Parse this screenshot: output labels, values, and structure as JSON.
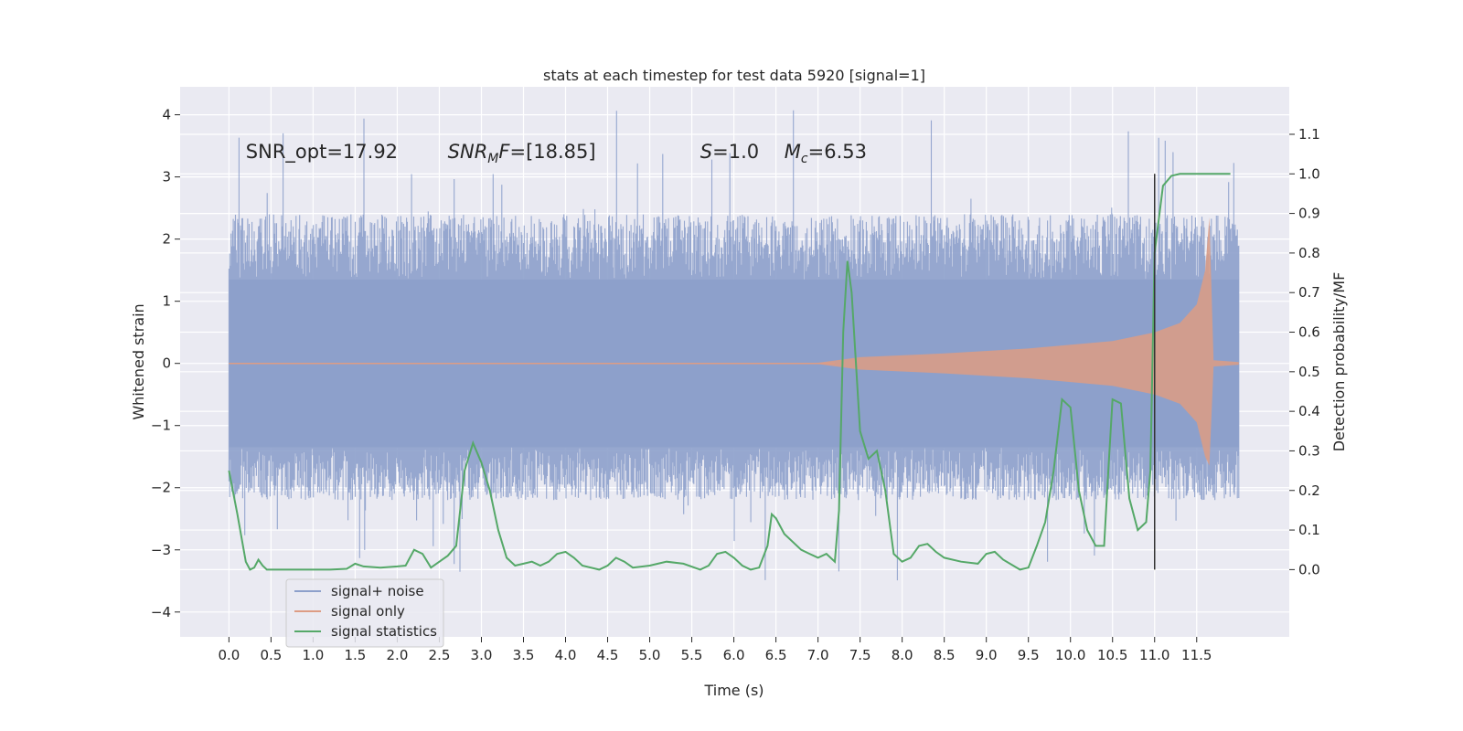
{
  "chart_data": {
    "type": "line",
    "title": "stats at each timestep for test data 5920 [signal=1]",
    "xlabel": "Time (s)",
    "ylabel": "Whitened strain",
    "y2label": "Detection probability/MF",
    "xlim": [
      -0.58,
      12.6
    ],
    "ylim": [
      -4.4,
      4.45
    ],
    "y2lim": [
      -0.17,
      1.22
    ],
    "xticks": [
      0.0,
      0.5,
      1.0,
      1.5,
      2.0,
      2.5,
      3.0,
      3.5,
      4.0,
      4.5,
      5.0,
      5.5,
      6.0,
      6.5,
      7.0,
      7.5,
      8.0,
      8.5,
      9.0,
      9.5,
      10.0,
      10.5,
      11.0,
      11.5
    ],
    "xtick_labels": [
      "0.0",
      "0.5",
      "1.0",
      "1.5",
      "2.0",
      "2.5",
      "3.0",
      "3.5",
      "4.0",
      "4.5",
      "5.0",
      "5.5",
      "6.0",
      "6.5",
      "7.0",
      "7.5",
      "8.0",
      "8.5",
      "9.0",
      "9.5",
      "10.0",
      "10.5",
      "11.0",
      "11.5"
    ],
    "yticks": [
      -4,
      -3,
      -2,
      -1,
      0,
      1,
      2,
      3,
      4
    ],
    "ytick_labels": [
      "−4",
      "−3",
      "−2",
      "−1",
      "0",
      "1",
      "2",
      "3",
      "4"
    ],
    "y2ticks": [
      0.0,
      0.1,
      0.2,
      0.3,
      0.4,
      0.5,
      0.6,
      0.7,
      0.8,
      0.9,
      1.0,
      1.1
    ],
    "y2tick_labels": [
      "0.0",
      "0.1",
      "0.2",
      "0.3",
      "0.4",
      "0.5",
      "0.6",
      "0.7",
      "0.8",
      "0.9",
      "1.0",
      "1.1"
    ],
    "grid": true,
    "legend_position": "lower-left",
    "annotations": [
      {
        "text": "SNR_opt=17.92",
        "x": 0.2,
        "y": 3.3
      },
      {
        "text": "SNR_MF=[18.85]",
        "x": 2.6,
        "y": 3.3
      },
      {
        "text": "S=1.0",
        "x": 5.6,
        "y": 3.3
      },
      {
        "text": "M_c=6.53",
        "x": 6.6,
        "y": 3.3
      }
    ],
    "vline": {
      "x": 11.0,
      "y2_range": [
        0.0,
        1.0
      ],
      "color": "#333333"
    },
    "series": [
      {
        "name": "signal+ noise",
        "color": "#8da0cb",
        "style": "noise-band",
        "x_range": [
          0.0,
          12.0
        ],
        "envelope": {
          "core": 1.35,
          "typical_max": 2.4,
          "typical_min": -2.2,
          "peak_max": 4.1,
          "peak_min": -3.85
        }
      },
      {
        "name": "signal only",
        "color": "#dd9c84",
        "style": "chirp",
        "x_range": [
          0.0,
          12.0
        ],
        "envelope_points": [
          [
            0.0,
            0.0
          ],
          [
            7.0,
            0.01
          ],
          [
            7.5,
            0.1
          ],
          [
            8.5,
            0.16
          ],
          [
            9.5,
            0.24
          ],
          [
            10.5,
            0.36
          ],
          [
            11.0,
            0.5
          ],
          [
            11.3,
            0.65
          ],
          [
            11.5,
            0.95
          ],
          [
            11.6,
            1.5
          ],
          [
            11.65,
            2.35
          ],
          [
            11.7,
            0.05
          ],
          [
            12.0,
            0.02
          ]
        ]
      },
      {
        "name": "signal statistics",
        "color": "#55a868",
        "style": "line",
        "axis": "right",
        "points": [
          [
            0.0,
            0.25
          ],
          [
            0.1,
            0.14
          ],
          [
            0.15,
            0.08
          ],
          [
            0.2,
            0.02
          ],
          [
            0.25,
            0.0
          ],
          [
            0.3,
            0.005
          ],
          [
            0.35,
            0.025
          ],
          [
            0.4,
            0.01
          ],
          [
            0.45,
            0.0
          ],
          [
            0.6,
            0.0
          ],
          [
            0.8,
            0.0
          ],
          [
            1.0,
            0.0
          ],
          [
            1.2,
            0.0
          ],
          [
            1.4,
            0.002
          ],
          [
            1.5,
            0.015
          ],
          [
            1.6,
            0.008
          ],
          [
            1.8,
            0.005
          ],
          [
            2.0,
            0.008
          ],
          [
            2.1,
            0.01
          ],
          [
            2.2,
            0.05
          ],
          [
            2.3,
            0.04
          ],
          [
            2.4,
            0.005
          ],
          [
            2.5,
            0.02
          ],
          [
            2.6,
            0.035
          ],
          [
            2.7,
            0.06
          ],
          [
            2.8,
            0.25
          ],
          [
            2.9,
            0.32
          ],
          [
            3.0,
            0.27
          ],
          [
            3.1,
            0.2
          ],
          [
            3.2,
            0.1
          ],
          [
            3.3,
            0.03
          ],
          [
            3.4,
            0.01
          ],
          [
            3.5,
            0.015
          ],
          [
            3.6,
            0.02
          ],
          [
            3.7,
            0.01
          ],
          [
            3.8,
            0.02
          ],
          [
            3.9,
            0.04
          ],
          [
            4.0,
            0.045
          ],
          [
            4.1,
            0.03
          ],
          [
            4.2,
            0.01
          ],
          [
            4.4,
            0.0
          ],
          [
            4.5,
            0.01
          ],
          [
            4.6,
            0.03
          ],
          [
            4.7,
            0.02
          ],
          [
            4.8,
            0.005
          ],
          [
            5.0,
            0.01
          ],
          [
            5.2,
            0.02
          ],
          [
            5.4,
            0.015
          ],
          [
            5.6,
            0.0
          ],
          [
            5.7,
            0.01
          ],
          [
            5.8,
            0.04
          ],
          [
            5.9,
            0.045
          ],
          [
            6.0,
            0.03
          ],
          [
            6.1,
            0.01
          ],
          [
            6.2,
            0.0
          ],
          [
            6.3,
            0.005
          ],
          [
            6.4,
            0.06
          ],
          [
            6.45,
            0.14
          ],
          [
            6.5,
            0.13
          ],
          [
            6.6,
            0.09
          ],
          [
            6.8,
            0.05
          ],
          [
            6.9,
            0.04
          ],
          [
            7.0,
            0.03
          ],
          [
            7.1,
            0.04
          ],
          [
            7.2,
            0.02
          ],
          [
            7.25,
            0.15
          ],
          [
            7.3,
            0.6
          ],
          [
            7.35,
            0.78
          ],
          [
            7.4,
            0.7
          ],
          [
            7.5,
            0.35
          ],
          [
            7.6,
            0.28
          ],
          [
            7.7,
            0.3
          ],
          [
            7.8,
            0.2
          ],
          [
            7.9,
            0.04
          ],
          [
            8.0,
            0.02
          ],
          [
            8.1,
            0.03
          ],
          [
            8.2,
            0.06
          ],
          [
            8.3,
            0.065
          ],
          [
            8.4,
            0.045
          ],
          [
            8.5,
            0.03
          ],
          [
            8.7,
            0.02
          ],
          [
            8.9,
            0.015
          ],
          [
            9.0,
            0.04
          ],
          [
            9.1,
            0.045
          ],
          [
            9.2,
            0.025
          ],
          [
            9.4,
            0.0
          ],
          [
            9.5,
            0.005
          ],
          [
            9.6,
            0.06
          ],
          [
            9.7,
            0.12
          ],
          [
            9.8,
            0.25
          ],
          [
            9.9,
            0.43
          ],
          [
            10.0,
            0.41
          ],
          [
            10.1,
            0.2
          ],
          [
            10.2,
            0.1
          ],
          [
            10.3,
            0.06
          ],
          [
            10.4,
            0.06
          ],
          [
            10.45,
            0.25
          ],
          [
            10.5,
            0.43
          ],
          [
            10.6,
            0.42
          ],
          [
            10.7,
            0.18
          ],
          [
            10.8,
            0.1
          ],
          [
            10.9,
            0.12
          ],
          [
            10.95,
            0.25
          ],
          [
            11.0,
            0.8
          ],
          [
            11.1,
            0.97
          ],
          [
            11.2,
            0.995
          ],
          [
            11.3,
            1.0
          ],
          [
            11.5,
            1.0
          ],
          [
            11.7,
            1.0
          ],
          [
            11.9,
            1.0
          ]
        ]
      }
    ]
  }
}
